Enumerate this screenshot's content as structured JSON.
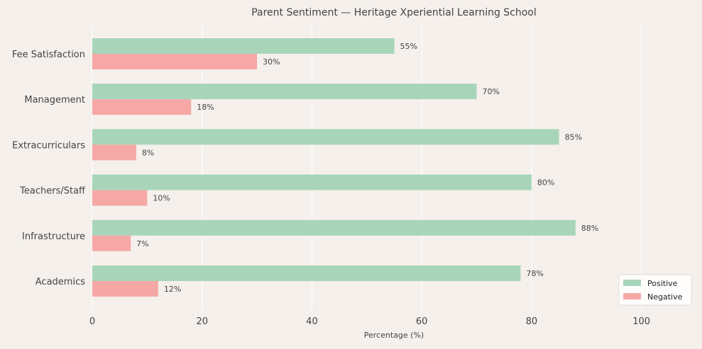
{
  "chart_data": {
    "type": "bar",
    "orientation": "horizontal",
    "title": "Parent Sentiment — Heritage Xperiential Learning School",
    "xlabel": "Percentage (%)",
    "ylabel": "",
    "categories": [
      "Academics",
      "Infrastructure",
      "Teachers/Staff",
      "Extracurriculars",
      "Management",
      "Fee Satisfaction"
    ],
    "series": [
      {
        "name": "Positive",
        "color": "#a8d5ba",
        "values": [
          78,
          88,
          80,
          85,
          70,
          55
        ]
      },
      {
        "name": "Negative",
        "color": "#f5a8a5",
        "values": [
          12,
          7,
          10,
          8,
          18,
          30
        ]
      }
    ],
    "value_suffix": "%",
    "xlim": [
      0,
      110
    ],
    "xticks": [
      0,
      20,
      40,
      60,
      80,
      100
    ],
    "grid": "vertical",
    "legend_position": "lower-right",
    "background": "#f5f0ec"
  }
}
